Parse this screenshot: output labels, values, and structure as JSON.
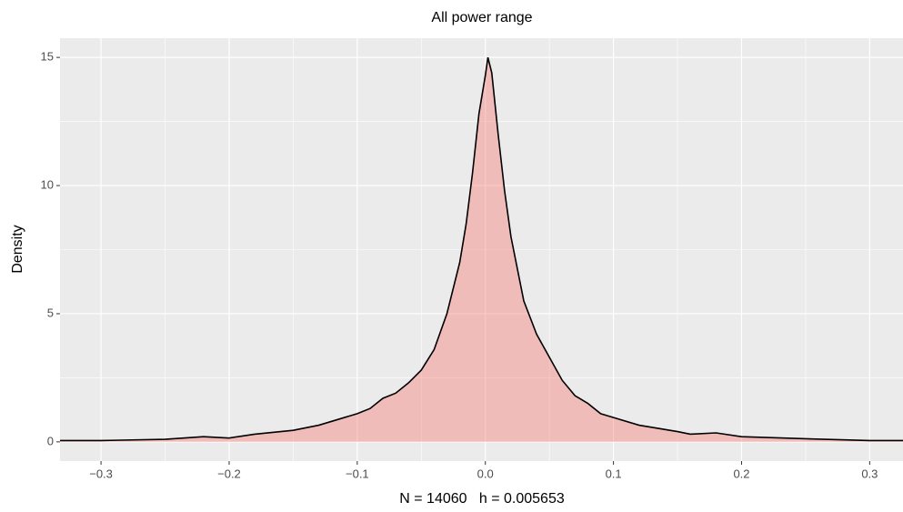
{
  "chart_data": {
    "type": "density",
    "title": "All power range",
    "xlabel": "N = 14060   h = 0.005653",
    "ylabel": "Density",
    "x": [
      -0.332,
      -0.3,
      -0.25,
      -0.22,
      -0.2,
      -0.18,
      -0.15,
      -0.13,
      -0.1,
      -0.09,
      -0.08,
      -0.07,
      -0.06,
      -0.05,
      -0.04,
      -0.03,
      -0.02,
      -0.015,
      -0.01,
      -0.005,
      0,
      0.002,
      0.005,
      0.01,
      0.015,
      0.02,
      0.03,
      0.04,
      0.05,
      0.06,
      0.07,
      0.08,
      0.09,
      0.1,
      0.12,
      0.15,
      0.16,
      0.18,
      0.2,
      0.25,
      0.3,
      0.326
    ],
    "values": [
      0.05,
      0.05,
      0.1,
      0.2,
      0.15,
      0.3,
      0.45,
      0.65,
      1.1,
      1.3,
      1.7,
      1.9,
      2.3,
      2.8,
      3.6,
      5.0,
      7.0,
      8.5,
      10.5,
      12.8,
      14.3,
      15.0,
      14.4,
      12.0,
      9.8,
      8.0,
      5.5,
      4.2,
      3.3,
      2.4,
      1.8,
      1.5,
      1.1,
      0.95,
      0.65,
      0.4,
      0.3,
      0.35,
      0.2,
      0.12,
      0.05,
      0.05
    ],
    "fill": "#f8766d",
    "fill_opacity": 0.4,
    "line_color": "#000000",
    "xlim": [
      -0.332,
      0.326
    ],
    "ylim": [
      -0.75,
      15.75
    ],
    "xticks": [
      {
        "value": -0.3,
        "label": "−0.3"
      },
      {
        "value": -0.2,
        "label": "−0.2"
      },
      {
        "value": -0.1,
        "label": "−0.1"
      },
      {
        "value": 0,
        "label": "0.0"
      },
      0.1,
      0.2,
      0.3
    ],
    "yticks": [
      0,
      5,
      10,
      15
    ],
    "x_minor_ticks": [
      -0.25,
      -0.15,
      -0.05,
      0.05,
      0.15,
      0.25
    ],
    "y_minor_ticks": [
      2.5,
      7.5,
      12.5
    ],
    "grid": true
  }
}
